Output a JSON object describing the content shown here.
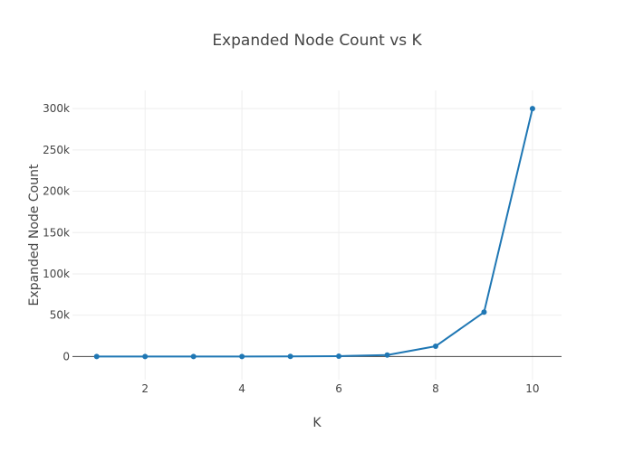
{
  "chart_data": {
    "type": "line",
    "title": "Expanded Node Count vs K",
    "xlabel": "K",
    "ylabel": "Expanded Node Count",
    "x": [
      1,
      2,
      3,
      4,
      5,
      6,
      7,
      8,
      9,
      10
    ],
    "series": [
      {
        "values": [
          3,
          6,
          24,
          46,
          161,
          488,
          1800,
          12500,
          53700,
          300000
        ]
      }
    ],
    "xlim": [
      0.5,
      10.6
    ],
    "ylim": [
      -28000,
      322000
    ],
    "x_ticks": [
      2,
      4,
      6,
      8,
      10
    ],
    "x_tick_labels": [
      "2",
      "4",
      "6",
      "8",
      "10"
    ],
    "y_ticks": [
      0,
      50000,
      100000,
      150000,
      200000,
      250000,
      300000
    ],
    "y_tick_labels": [
      "0",
      "50k",
      "100k",
      "150k",
      "200k",
      "250k",
      "300k"
    ],
    "grid": true,
    "colors": {
      "line": "#1f77b4",
      "grid": "#eeeeee",
      "zeroline": "#444444",
      "text": "#444444"
    }
  }
}
